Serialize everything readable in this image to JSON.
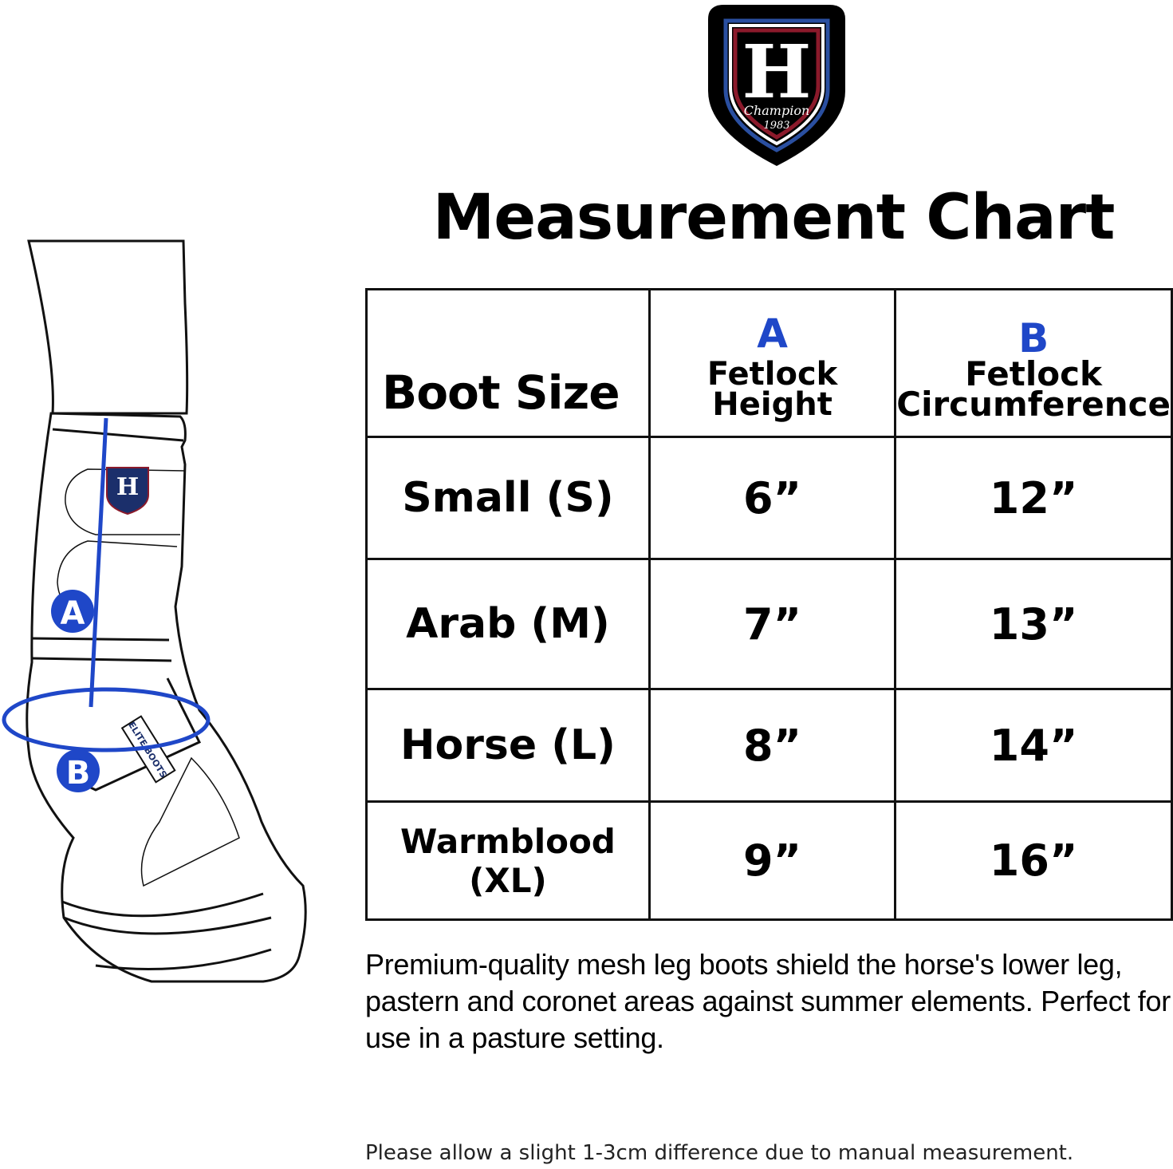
{
  "logo": {
    "letter": "H",
    "script": "Champion",
    "year": "1983",
    "colors": {
      "outer": "#000000",
      "red": "#8b1a2b",
      "blue": "#2a4fa0"
    }
  },
  "title": "Measurement Chart",
  "diagram": {
    "marker_a": "A",
    "marker_b": "B",
    "boot_brand": "ELITE BOOTS",
    "accent": "#1f47c8"
  },
  "table": {
    "headers": {
      "size": "Boot Size",
      "a_letter": "A",
      "a_label": "Fetlock Height",
      "b_letter": "B",
      "b_label_line1": "Fetlock",
      "b_label_line2": "Circumference"
    },
    "rows": [
      {
        "size": "Small (S)",
        "a": "6”",
        "b": "12”"
      },
      {
        "size": "Arab (M)",
        "a": "7”",
        "b": "13”"
      },
      {
        "size": "Horse (L)",
        "a": "8”",
        "b": "14”"
      },
      {
        "size": "Warmblood (XL)",
        "a": "9”",
        "b": "16”"
      }
    ]
  },
  "description": "Premium-quality mesh leg boots shield the horse's lower leg, pastern and coronet areas against summer elements. Perfect for use in a pasture setting.",
  "note": "Please allow a slight 1-3cm difference due to manual measurement."
}
